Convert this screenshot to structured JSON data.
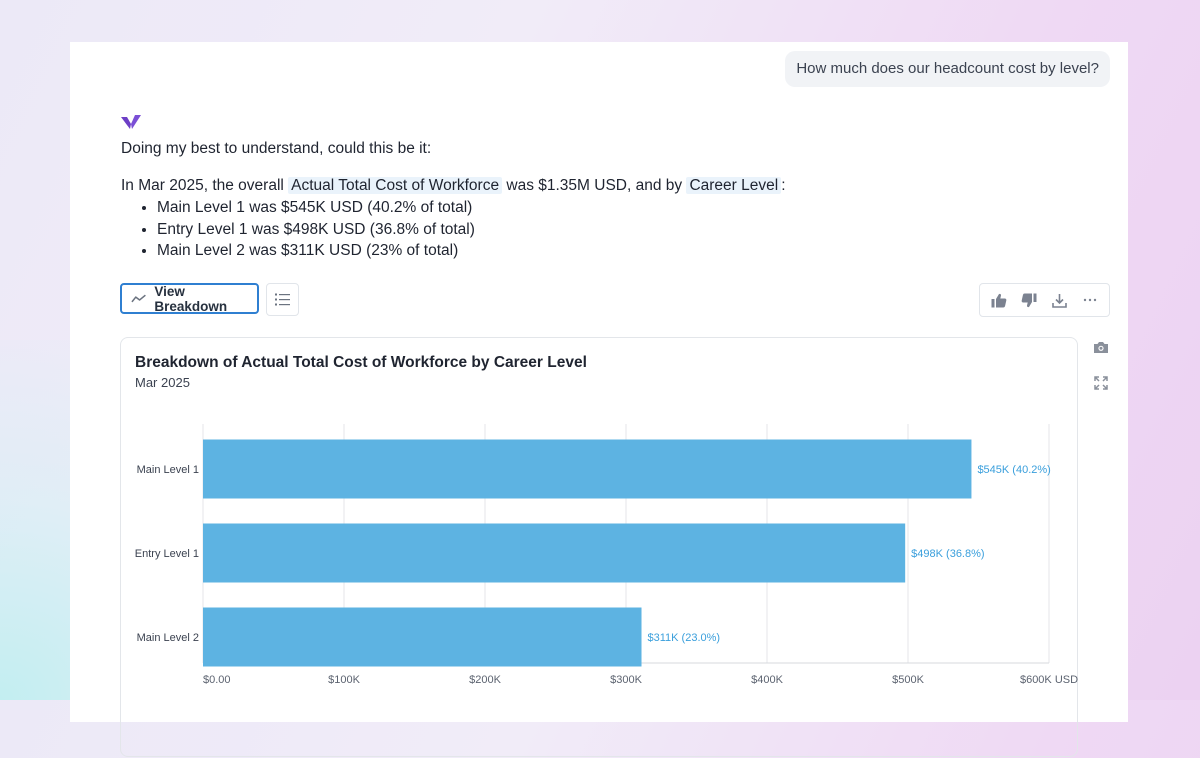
{
  "conversation": {
    "user_question": "How much does our headcount cost by level?",
    "assistant": {
      "intro": "Doing my best to understand, could this be it:",
      "summary": {
        "prefix": "In Mar 2025, the overall",
        "metric": "Actual Total Cost of Workforce",
        "middle": "was $1.35M USD, and by",
        "dimension": "Career Level",
        "suffix": ":"
      },
      "bullets": [
        "Main Level 1 was $545K USD (40.2% of total)",
        "Entry Level 1 was $498K USD (36.8% of total)",
        "Main Level 2 was $311K USD (23% of total)"
      ]
    }
  },
  "toolbar": {
    "view_breakdown_label": "View Breakdown",
    "list_icon": "list-icon",
    "actions": [
      "thumbs-up-icon",
      "thumbs-down-icon",
      "download-icon",
      "more-icon"
    ]
  },
  "side_actions": [
    "camera-icon",
    "expand-icon"
  ],
  "colors": {
    "bar": "#5db3e2",
    "label": "#3a9fdc",
    "accent": "#2f7fd1",
    "logo": "#6d3fc6"
  },
  "chart_data": {
    "type": "bar",
    "orientation": "horizontal",
    "title": "Breakdown of Actual Total Cost of Workforce by Career Level",
    "subtitle": "Mar 2025",
    "categories": [
      "Main Level 1",
      "Entry Level 1",
      "Main Level 2"
    ],
    "values": [
      545000,
      498000,
      311000
    ],
    "data_labels": [
      "$545K (40.2%)",
      "$498K (36.8%)",
      "$311K (23.0%)"
    ],
    "x_ticks": [
      0,
      100000,
      200000,
      300000,
      400000,
      500000,
      600000
    ],
    "x_tick_labels": [
      "$0.00",
      "$100K",
      "$200K",
      "$300K",
      "$400K",
      "$500K",
      "$600K USD"
    ],
    "xlim": [
      0,
      600000
    ],
    "grid": true
  }
}
